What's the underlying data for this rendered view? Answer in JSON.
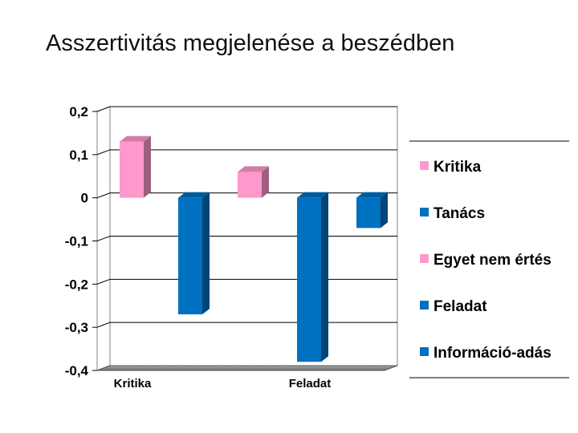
{
  "title": "Asszertivitás megjelenése a beszédben",
  "colors": {
    "pink": "#ff99cc",
    "blue": "#0070c0"
  },
  "chart_data": {
    "type": "bar",
    "title": "Asszertivitás megjelenése a beszédben",
    "xlabel": "",
    "ylabel": "",
    "ylim": [
      -0.4,
      0.2
    ],
    "y_ticks": [
      "0,2",
      "0,1",
      "0",
      "-0,1",
      "-0,2",
      "-0,3",
      "-0,4"
    ],
    "categories": [
      "Kritika",
      "Feladat"
    ],
    "grid": true,
    "legend_position": "right",
    "series": [
      {
        "name": "Kritika",
        "value": 0.13,
        "color": "#ff99cc"
      },
      {
        "name": "Tanács",
        "value": -0.27,
        "color": "#0070c0"
      },
      {
        "name": "Egyet nem értés",
        "value": 0.06,
        "color": "#ff99cc"
      },
      {
        "name": "Feladat",
        "value": -0.38,
        "color": "#0070c0"
      },
      {
        "name": "Információ-adás",
        "value": -0.07,
        "color": "#0070c0"
      }
    ]
  }
}
